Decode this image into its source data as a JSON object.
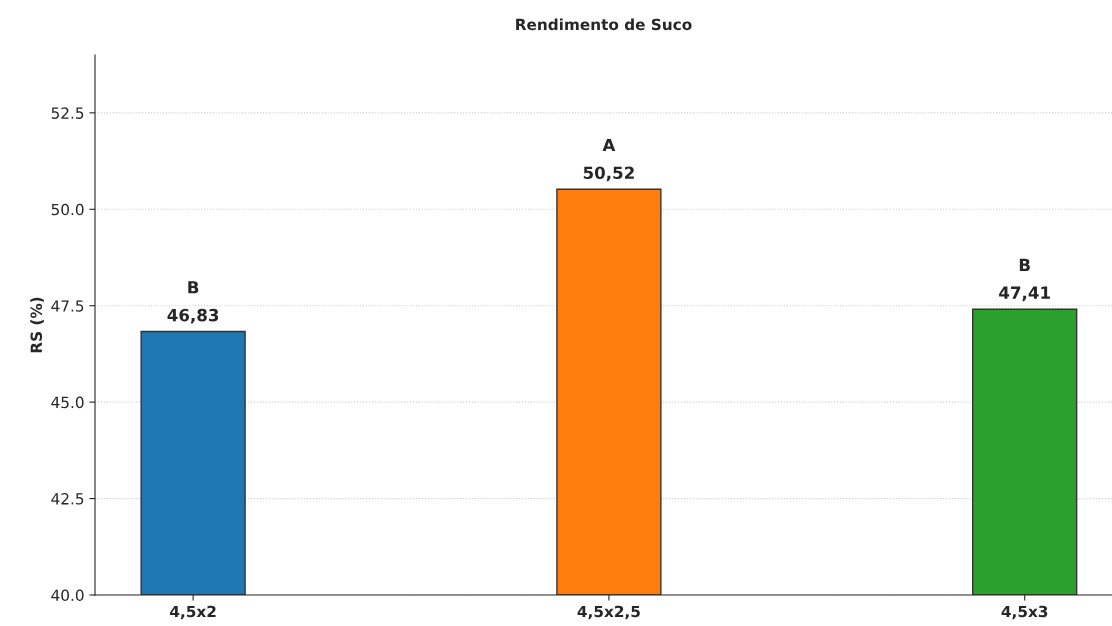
{
  "chart_data": {
    "type": "bar",
    "title": "Rendimento de Suco",
    "ylabel": "RS (%)",
    "categories": [
      "4,5x2",
      "4,5x2,5",
      "4,5x3"
    ],
    "values": [
      46.83,
      50.52,
      47.41
    ],
    "colors": [
      "#1f77b4",
      "#ff7f0e",
      "#2ca02c"
    ],
    "value_labels": [
      "46,83",
      "50,52",
      "47,41"
    ],
    "annotations": [
      {
        "text": "B",
        "x": "4,5x2",
        "y": 46.83
      },
      {
        "text": "A",
        "x": "4,5x2,5",
        "y": 50.52
      },
      {
        "text": "B",
        "x": "4,5x3",
        "y": 47.41
      }
    ],
    "ylim": [
      40,
      54
    ],
    "yticks": [
      {
        "value": 40,
        "label": "40.0"
      },
      42.5,
      {
        "value": 45,
        "label": "45.0"
      },
      47.5,
      {
        "value": 50,
        "label": "50.0"
      },
      52.5
    ],
    "grid": "y",
    "legend": false
  }
}
